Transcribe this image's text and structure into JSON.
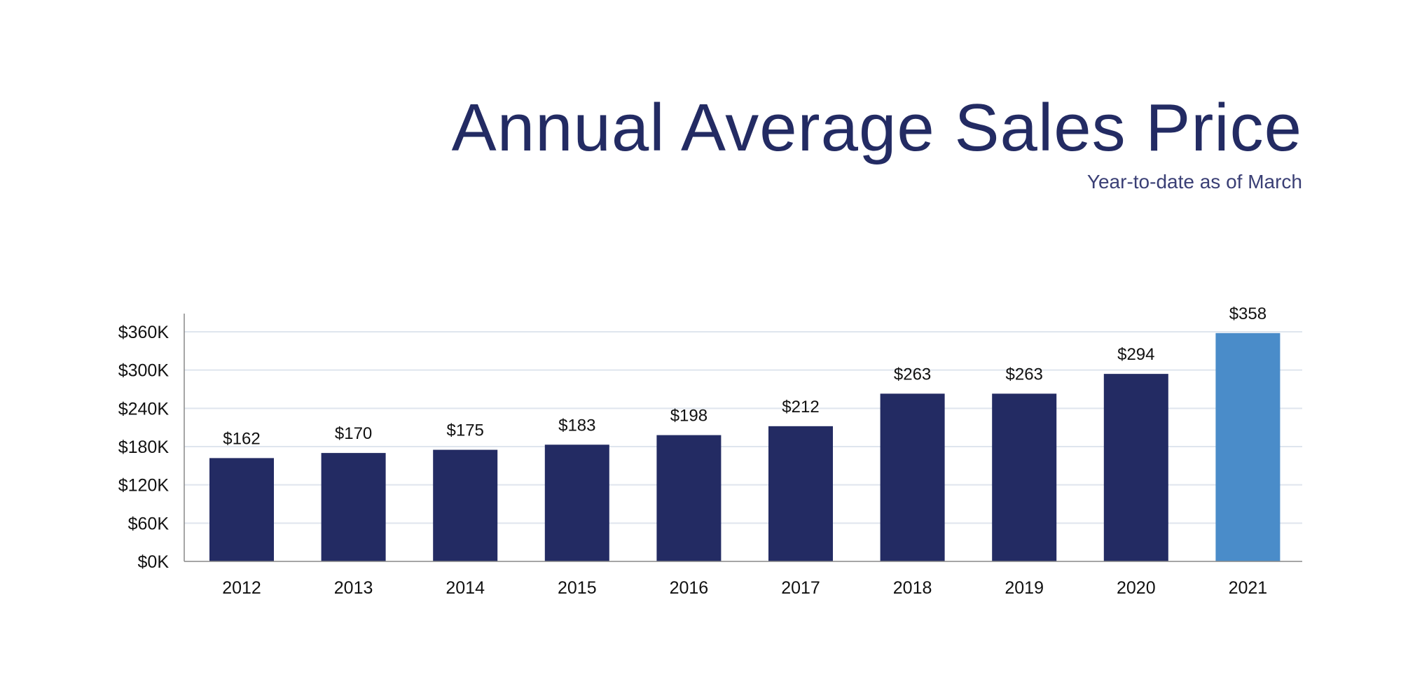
{
  "chart_data": {
    "type": "bar",
    "title": "Annual Average Sales Price",
    "subtitle": "Year-to-date as of March",
    "categories": [
      "2012",
      "2013",
      "2014",
      "2015",
      "2016",
      "2017",
      "2018",
      "2019",
      "2020",
      "2021"
    ],
    "values": [
      162,
      170,
      175,
      183,
      198,
      212,
      263,
      263,
      294,
      358
    ],
    "data_labels": [
      "$162",
      "$170",
      "$175",
      "$183",
      "$198",
      "$212",
      "$263",
      "$263",
      "$294",
      "$358"
    ],
    "unit": "thousands of dollars",
    "ylim": [
      0,
      380
    ],
    "yticks": [
      0,
      60,
      120,
      180,
      240,
      300,
      360
    ],
    "ytick_labels": [
      "$0K",
      "$60K",
      "$120K",
      "$180K",
      "$240K",
      "$300K",
      "$360K"
    ],
    "grid": true,
    "colors": {
      "default": "#232b63",
      "highlight": "#4a8cc9",
      "highlight_category": "2021",
      "title": "#232b63",
      "grid": "#dfe5ee"
    }
  }
}
